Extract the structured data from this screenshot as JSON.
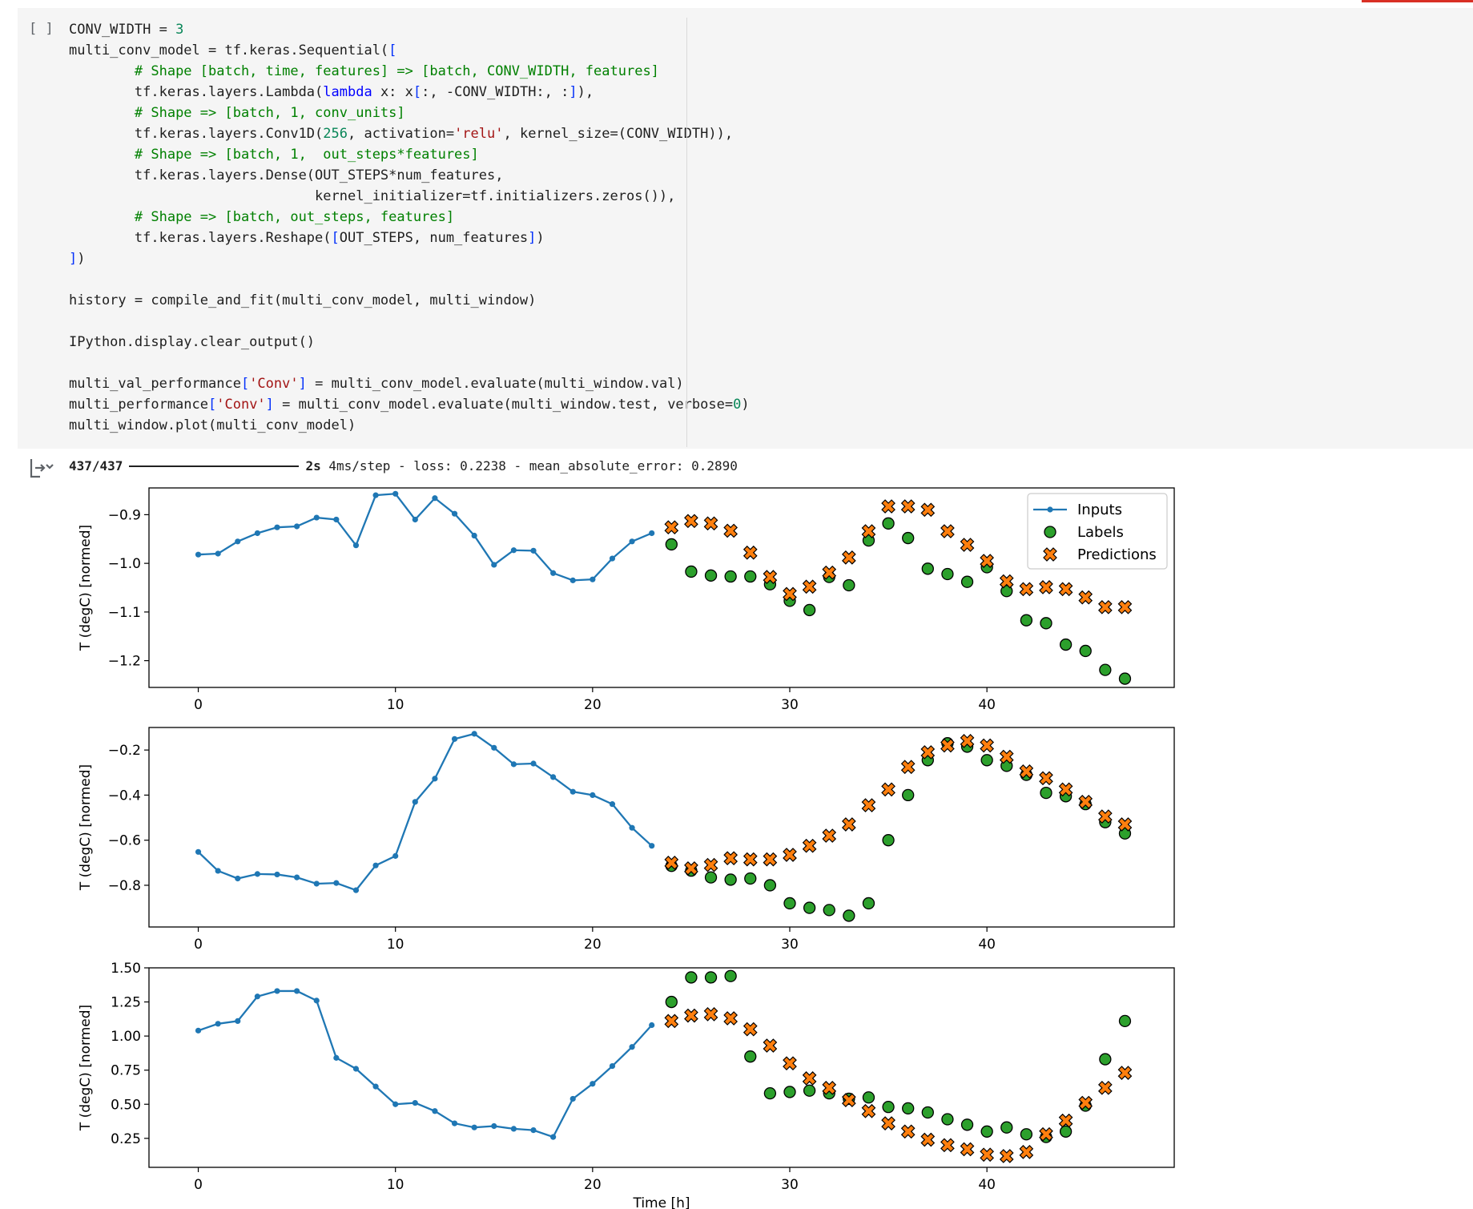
{
  "cell": {
    "run_button": "[ ]",
    "code": [
      [
        [
          "t",
          "CONV_WIDTH = "
        ],
        [
          "num",
          "3"
        ]
      ],
      [
        [
          "t",
          "multi_conv_model = tf.keras.Sequential("
        ],
        [
          "br",
          "["
        ]
      ],
      [
        [
          "t",
          "        "
        ],
        [
          "cm",
          "# Shape [batch, time, features] => [batch, CONV_WIDTH, features]"
        ]
      ],
      [
        [
          "t",
          "        tf.keras.layers.Lambda("
        ],
        [
          "kw",
          "lambda"
        ],
        [
          "t",
          " x: x"
        ],
        [
          "br",
          "["
        ],
        [
          "t",
          ":, -CONV_WIDTH:, :"
        ],
        [
          "br",
          "]"
        ],
        [
          "t",
          "),"
        ]
      ],
      [
        [
          "t",
          "        "
        ],
        [
          "cm",
          "# Shape => [batch, 1, conv_units]"
        ]
      ],
      [
        [
          "t",
          "        tf.keras.layers.Conv1D("
        ],
        [
          "num",
          "256"
        ],
        [
          "t",
          ", activation="
        ],
        [
          "str",
          "'relu'"
        ],
        [
          "t",
          ", kernel_size=("
        ],
        [
          "t",
          "CONV_WIDTH"
        ],
        [
          "t",
          ")),"
        ]
      ],
      [
        [
          "t",
          "        "
        ],
        [
          "cm",
          "# Shape => [batch, 1,  out_steps*features]"
        ]
      ],
      [
        [
          "t",
          "        tf.keras.layers.Dense(OUT_STEPS*num_features,"
        ]
      ],
      [
        [
          "t",
          "                              kernel_initializer=tf.initializers.zeros()),"
        ]
      ],
      [
        [
          "t",
          "        "
        ],
        [
          "cm",
          "# Shape => [batch, out_steps, features]"
        ]
      ],
      [
        [
          "t",
          "        tf.keras.layers.Reshape("
        ],
        [
          "br",
          "["
        ],
        [
          "t",
          "OUT_STEPS, num_features"
        ],
        [
          "br",
          "]"
        ],
        [
          "t",
          ")"
        ]
      ],
      [
        [
          "br",
          "]"
        ],
        [
          "t",
          ")"
        ]
      ],
      [],
      [
        [
          "t",
          "history = compile_and_fit(multi_conv_model, multi_window)"
        ]
      ],
      [],
      [
        [
          "t",
          "IPython.display.clear_output()"
        ]
      ],
      [],
      [
        [
          "t",
          "multi_val_performance"
        ],
        [
          "br",
          "["
        ],
        [
          "str",
          "'Conv'"
        ],
        [
          "br",
          "]"
        ],
        [
          "t",
          " = multi_conv_model.evaluate(multi_window.val)"
        ]
      ],
      [
        [
          "t",
          "multi_performance"
        ],
        [
          "br",
          "["
        ],
        [
          "str",
          "'Conv'"
        ],
        [
          "br",
          "]"
        ],
        [
          "t",
          " = multi_conv_model.evaluate(multi_window.test, verbose="
        ],
        [
          "num",
          "0"
        ],
        [
          "t",
          ")"
        ]
      ],
      [
        [
          "t",
          "multi_window.plot(multi_conv_model)"
        ]
      ]
    ]
  },
  "output": {
    "progress_count": "437/437",
    "progress_time": "2s",
    "progress_rest": "4ms/step - loss: 0.2238 - mean_absolute_error: 0.2890"
  },
  "chart_data": [
    {
      "type": "line",
      "ylabel": "T (degC) [normed]",
      "xlabel": "",
      "xlim": [
        -2.5,
        49.5
      ],
      "ylim": [
        -1.255,
        -0.845
      ],
      "xticks": [
        0,
        10,
        20,
        30,
        40
      ],
      "yticks": [
        -0.9,
        -1.0,
        -1.1,
        -1.2
      ],
      "ytick_labels": [
        "−0.9",
        "−1.0",
        "−1.1",
        "−1.2"
      ],
      "legend": {
        "placement": "top-right",
        "entries": [
          "Inputs",
          "Labels",
          "Predictions"
        ]
      },
      "series": [
        {
          "name": "Inputs",
          "kind": "line",
          "x": [
            0,
            1,
            2,
            3,
            4,
            5,
            6,
            7,
            8,
            9,
            10,
            11,
            12,
            13,
            14,
            15,
            16,
            17,
            18,
            19,
            20,
            21,
            22,
            23
          ],
          "values": [
            -0.982,
            -0.98,
            -0.955,
            -0.938,
            -0.926,
            -0.924,
            -0.906,
            -0.91,
            -0.963,
            -0.86,
            -0.857,
            -0.91,
            -0.866,
            -0.898,
            -0.943,
            -1.003,
            -0.973,
            -0.974,
            -1.02,
            -1.035,
            -1.033,
            -0.99,
            -0.955,
            -0.938
          ]
        },
        {
          "name": "Labels",
          "kind": "scatter",
          "x": [
            24,
            25,
            26,
            27,
            28,
            29,
            30,
            31,
            32,
            33,
            34,
            35,
            36,
            37,
            38,
            39,
            40,
            41,
            42,
            43,
            44,
            45,
            46,
            47
          ],
          "values": [
            -0.961,
            -1.017,
            -1.025,
            -1.027,
            -1.027,
            -1.043,
            -1.077,
            -1.096,
            -1.028,
            -1.045,
            -0.953,
            -0.918,
            -0.948,
            -1.011,
            -1.022,
            -1.038,
            -1.008,
            -1.057,
            -1.117,
            -1.123,
            -1.167,
            -1.18,
            -1.219,
            -1.237
          ]
        },
        {
          "name": "Predictions",
          "kind": "scatter",
          "x": [
            24,
            25,
            26,
            27,
            28,
            29,
            30,
            31,
            32,
            33,
            34,
            35,
            36,
            37,
            38,
            39,
            40,
            41,
            42,
            43,
            44,
            45,
            46,
            47
          ],
          "values": [
            -0.926,
            -0.913,
            -0.918,
            -0.933,
            -0.978,
            -1.028,
            -1.063,
            -1.048,
            -1.019,
            -0.988,
            -0.934,
            -0.883,
            -0.883,
            -0.89,
            -0.934,
            -0.962,
            -0.995,
            -1.037,
            -1.053,
            -1.049,
            -1.053,
            -1.07,
            -1.09,
            -1.09
          ]
        }
      ]
    },
    {
      "type": "line",
      "ylabel": "T (degC) [normed]",
      "xlabel": "",
      "xlim": [
        -2.5,
        49.5
      ],
      "ylim": [
        -0.985,
        -0.1
      ],
      "xticks": [
        0,
        10,
        20,
        30,
        40
      ],
      "yticks": [
        -0.2,
        -0.4,
        -0.6,
        -0.8
      ],
      "ytick_labels": [
        "−0.2",
        "−0.4",
        "−0.6",
        "−0.8"
      ],
      "series": [
        {
          "name": "Inputs",
          "kind": "line",
          "x": [
            0,
            1,
            2,
            3,
            4,
            5,
            6,
            7,
            8,
            9,
            10,
            11,
            12,
            13,
            14,
            15,
            16,
            17,
            18,
            19,
            20,
            21,
            22,
            23
          ],
          "values": [
            -0.652,
            -0.736,
            -0.77,
            -0.75,
            -0.752,
            -0.765,
            -0.793,
            -0.79,
            -0.822,
            -0.712,
            -0.67,
            -0.43,
            -0.327,
            -0.151,
            -0.128,
            -0.19,
            -0.263,
            -0.26,
            -0.32,
            -0.385,
            -0.4,
            -0.44,
            -0.545,
            -0.625
          ]
        },
        {
          "name": "Labels",
          "kind": "scatter",
          "x": [
            24,
            25,
            26,
            27,
            28,
            29,
            30,
            31,
            32,
            33,
            34,
            35,
            36,
            37,
            38,
            39,
            40,
            41,
            42,
            43,
            44,
            45,
            46,
            47
          ],
          "values": [
            -0.714,
            -0.735,
            -0.765,
            -0.775,
            -0.77,
            -0.8,
            -0.88,
            -0.9,
            -0.91,
            -0.935,
            -0.88,
            -0.6,
            -0.4,
            -0.245,
            -0.17,
            -0.185,
            -0.245,
            -0.27,
            -0.31,
            -0.39,
            -0.405,
            -0.44,
            -0.52,
            -0.57
          ]
        },
        {
          "name": "Predictions",
          "kind": "scatter",
          "x": [
            24,
            25,
            26,
            27,
            28,
            29,
            30,
            31,
            32,
            33,
            34,
            35,
            36,
            37,
            38,
            39,
            40,
            41,
            42,
            43,
            44,
            45,
            46,
            47
          ],
          "values": [
            -0.7,
            -0.725,
            -0.71,
            -0.68,
            -0.685,
            -0.685,
            -0.665,
            -0.625,
            -0.58,
            -0.53,
            -0.445,
            -0.375,
            -0.275,
            -0.21,
            -0.18,
            -0.16,
            -0.18,
            -0.23,
            -0.295,
            -0.325,
            -0.375,
            -0.43,
            -0.495,
            -0.53
          ]
        }
      ]
    },
    {
      "type": "line",
      "ylabel": "T (degC) [normed]",
      "xlabel": "Time [h]",
      "xlim": [
        -2.5,
        49.5
      ],
      "ylim": [
        0.0375,
        1.5
      ],
      "xticks": [
        0,
        10,
        20,
        30,
        40
      ],
      "yticks": [
        1.5,
        1.25,
        1.0,
        0.75,
        0.5,
        0.25
      ],
      "ytick_labels": [
        "1.50",
        "1.25",
        "1.00",
        "0.75",
        "0.50",
        "0.25"
      ],
      "series": [
        {
          "name": "Inputs",
          "kind": "line",
          "x": [
            0,
            1,
            2,
            3,
            4,
            5,
            6,
            7,
            8,
            9,
            10,
            11,
            12,
            13,
            14,
            15,
            16,
            17,
            18,
            19,
            20,
            21,
            22,
            23
          ],
          "values": [
            1.04,
            1.09,
            1.11,
            1.29,
            1.33,
            1.33,
            1.26,
            0.84,
            0.76,
            0.63,
            0.5,
            0.51,
            0.45,
            0.36,
            0.33,
            0.34,
            0.32,
            0.31,
            0.26,
            0.54,
            0.65,
            0.78,
            0.92,
            1.08
          ]
        },
        {
          "name": "Labels",
          "kind": "scatter",
          "x": [
            24,
            25,
            26,
            27,
            28,
            29,
            30,
            31,
            32,
            33,
            34,
            35,
            36,
            37,
            38,
            39,
            40,
            41,
            42,
            43,
            44,
            45,
            46,
            47
          ],
          "values": [
            1.25,
            1.43,
            1.43,
            1.44,
            0.85,
            0.58,
            0.59,
            0.6,
            0.58,
            0.54,
            0.55,
            0.48,
            0.47,
            0.44,
            0.39,
            0.35,
            0.3,
            0.33,
            0.28,
            0.26,
            0.3,
            0.49,
            0.83,
            1.11
          ]
        },
        {
          "name": "Predictions",
          "kind": "scatter",
          "x": [
            24,
            25,
            26,
            27,
            28,
            29,
            30,
            31,
            32,
            33,
            34,
            35,
            36,
            37,
            38,
            39,
            40,
            41,
            42,
            43,
            44,
            45,
            46,
            47
          ],
          "values": [
            1.11,
            1.15,
            1.16,
            1.13,
            1.05,
            0.93,
            0.8,
            0.69,
            0.62,
            0.53,
            0.45,
            0.36,
            0.3,
            0.24,
            0.2,
            0.17,
            0.13,
            0.12,
            0.15,
            0.28,
            0.38,
            0.51,
            0.62,
            0.73
          ]
        }
      ]
    }
  ],
  "colors": {
    "inputs": "#1f77b4",
    "labels": "#2ca02c",
    "predictions": "#ff7f0e"
  }
}
